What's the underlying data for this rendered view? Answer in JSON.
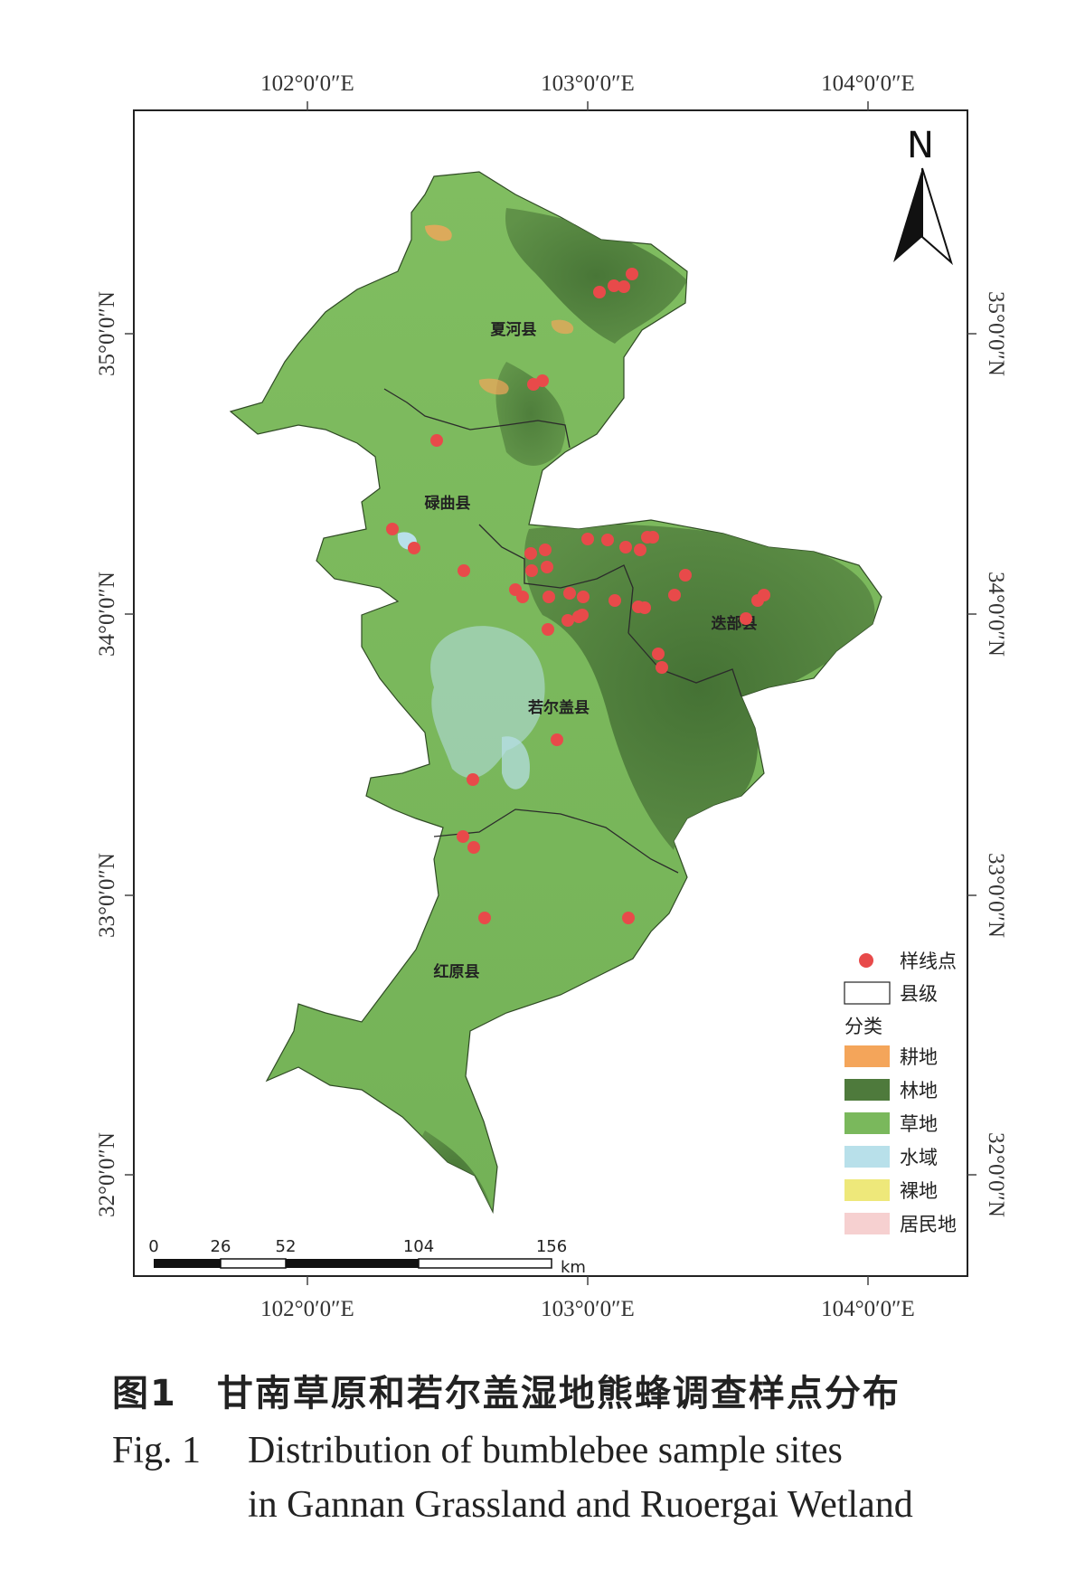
{
  "map": {
    "top_lon_labels": [
      "102°0′0″E",
      "103°0′0″E",
      "104°0′0″E"
    ],
    "bottom_lon_labels": [
      "102°0′0″E",
      "103°0′0″E",
      "104°0′0″E"
    ],
    "left_lat_labels": [
      "35°0′0″N",
      "34°0′0″N",
      "33°0′0″N",
      "32°0′0″N"
    ],
    "right_lat_labels": [
      "35°0′0″N",
      "34°0′0″N",
      "33°0′0″N",
      "32°0′0″N"
    ],
    "north_arrow": "N",
    "counties": {
      "xiahe": "夏河县",
      "luqu": "碌曲县",
      "diebu": "迭部县",
      "ruoergai": "若尔盖县",
      "hongyuan": "红原县"
    },
    "sample_point_count": 52
  },
  "legend": {
    "sample_points": "样线点",
    "county_level": "县级",
    "classification_title": "分类",
    "classes": [
      {
        "label": "耕地",
        "color": "#f4a55a"
      },
      {
        "label": "林地",
        "color": "#4e7a3c"
      },
      {
        "label": "草地",
        "color": "#7ab85c"
      },
      {
        "label": "水域",
        "color": "#b8e0ea"
      },
      {
        "label": "裸地",
        "color": "#eee87a"
      },
      {
        "label": "居民地",
        "color": "#f6d0d0"
      }
    ]
  },
  "scale_bar": {
    "ticks": [
      "0",
      "26",
      "52",
      "104",
      "156"
    ],
    "unit": "km"
  },
  "colors": {
    "grassland": "#7ab85c",
    "forest": "#4e7a3c",
    "water": "#b8e0ea",
    "sample_point": "#e84a4a"
  },
  "caption": {
    "cn_fig_no": "图1",
    "cn_title": "甘南草原和若尔盖湿地熊蜂调查样点分布",
    "en_fig_no": "Fig. 1",
    "en_title_line1": "Distribution of bumblebee sample sites",
    "en_title_line2": "in Gannan Grassland and Ruoergai Wetland"
  }
}
